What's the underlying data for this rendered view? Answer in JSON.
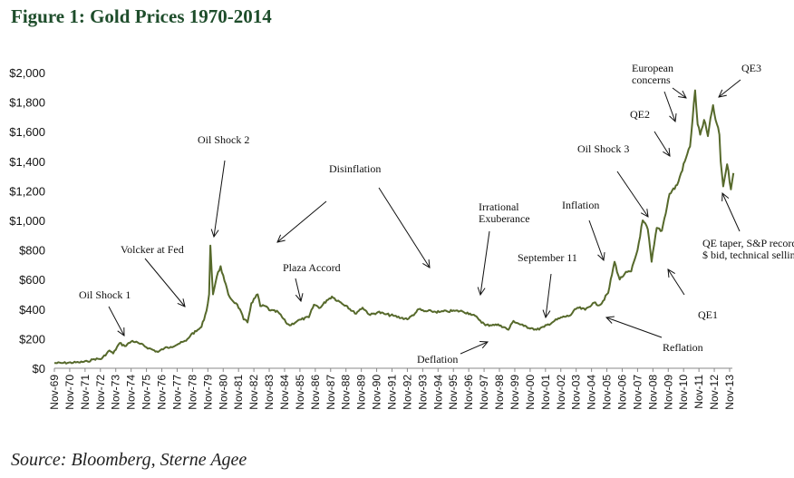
{
  "chart_data": {
    "type": "line",
    "title": "Figure 1: Gold Prices 1970-2014",
    "source": "Source: Bloomberg, Sterne Agee",
    "xlabel": "",
    "ylabel": "",
    "ylim": [
      0,
      2000
    ],
    "yticks": [
      "$0",
      "$200",
      "$400",
      "$600",
      "$800",
      "$1,000",
      "$1,200",
      "$1,400",
      "$1,600",
      "$1,800",
      "$2,000"
    ],
    "xticks": [
      "Nov-69",
      "Nov-70",
      "Nov-71",
      "Nov-72",
      "Nov-73",
      "Nov-74",
      "Nov-75",
      "Nov-76",
      "Nov-77",
      "Nov-78",
      "Nov-79",
      "Nov-80",
      "Nov-81",
      "Nov-82",
      "Nov-83",
      "Nov-84",
      "Nov-85",
      "Nov-86",
      "Nov-87",
      "Nov-88",
      "Nov-89",
      "Nov-90",
      "Nov-91",
      "Nov-92",
      "Nov-93",
      "Nov-94",
      "Nov-95",
      "Nov-96",
      "Nov-97",
      "Nov-98",
      "Nov-99",
      "Nov-00",
      "Nov-01",
      "Nov-02",
      "Nov-03",
      "Nov-04",
      "Nov-05",
      "Nov-06",
      "Nov-07",
      "Nov-08",
      "Nov-09",
      "Nov-10",
      "Nov-11",
      "Nov-12",
      "Nov-13"
    ],
    "grid": false,
    "line_color": "#56692b",
    "series": [
      {
        "x": [
          "1969-11",
          "1970-06",
          "1971-06",
          "1972-01",
          "1972-06",
          "1972-12",
          "1973-06",
          "1973-09",
          "1974-02",
          "1974-06",
          "1974-12",
          "1975-06",
          "1976-01",
          "1976-08",
          "1977-01",
          "1977-06",
          "1977-12",
          "1978-06",
          "1978-10",
          "1979-02",
          "1979-06",
          "1979-10",
          "1979-12",
          "1980-01",
          "1980-02",
          "1980-03",
          "1980-06",
          "1980-09",
          "1980-12",
          "1981-03",
          "1981-06",
          "1981-09",
          "1981-12",
          "1982-03",
          "1982-06",
          "1982-09",
          "1983-02",
          "1983-04",
          "1983-08",
          "1983-12",
          "1984-06",
          "1984-12",
          "1985-03",
          "1985-09",
          "1985-12",
          "1986-06",
          "1986-10",
          "1987-03",
          "1987-08",
          "1987-12",
          "1988-06",
          "1988-12",
          "1989-06",
          "1989-12",
          "1990-06",
          "1990-12",
          "1991-06",
          "1991-12",
          "1992-06",
          "1992-12",
          "1993-06",
          "1993-08",
          "1993-12",
          "1994-06",
          "1994-12",
          "1995-06",
          "1995-12",
          "1996-06",
          "1996-12",
          "1997-06",
          "1997-12",
          "1998-06",
          "1998-12",
          "1999-06",
          "1999-10",
          "2000-06",
          "2000-12",
          "2001-04",
          "2001-10",
          "2002-06",
          "2002-12",
          "2003-06",
          "2003-12",
          "2004-06",
          "2004-12",
          "2005-06",
          "2005-12",
          "2006-05",
          "2006-09",
          "2007-01",
          "2007-06",
          "2007-11",
          "2008-03",
          "2008-07",
          "2008-10",
          "2009-02",
          "2009-06",
          "2009-12",
          "2010-06",
          "2010-12",
          "2011-04",
          "2011-08",
          "2011-10",
          "2011-12",
          "2012-03",
          "2012-06",
          "2012-10",
          "2012-12",
          "2013-03",
          "2013-04",
          "2013-06",
          "2013-09",
          "2013-12",
          "2014-02"
        ],
        "y": [
          35,
          36,
          40,
          46,
          62,
          64,
          120,
          100,
          170,
          150,
          185,
          165,
          135,
          110,
          135,
          145,
          165,
          185,
          230,
          250,
          280,
          390,
          500,
          830,
          650,
          500,
          620,
          690,
          590,
          500,
          460,
          440,
          400,
          330,
          310,
          440,
          500,
          420,
          420,
          390,
          380,
          310,
          290,
          320,
          330,
          345,
          430,
          410,
          460,
          485,
          450,
          420,
          370,
          410,
          360,
          380,
          365,
          355,
          340,
          335,
          380,
          400,
          385,
          385,
          380,
          385,
          388,
          385,
          370,
          340,
          290,
          295,
          290,
          260,
          320,
          285,
          272,
          260,
          280,
          320,
          345,
          355,
          410,
          395,
          440,
          430,
          510,
          720,
          600,
          640,
          655,
          800,
          1000,
          940,
          720,
          950,
          930,
          1180,
          1240,
          1400,
          1500,
          1880,
          1650,
          1580,
          1680,
          1570,
          1780,
          1680,
          1580,
          1400,
          1230,
          1380,
          1210,
          1320
        ]
      }
    ],
    "annotations": [
      {
        "lines": [
          "Oil Shock 1"
        ]
      },
      {
        "lines": [
          "Volcker  at Fed"
        ]
      },
      {
        "lines": [
          "Oil Shock 2"
        ]
      },
      {
        "lines": [
          "Disinflation"
        ]
      },
      {
        "lines": [
          "Plaza Accord"
        ]
      },
      {
        "lines": [
          "Irrational",
          "Exuberance"
        ]
      },
      {
        "lines": [
          "Deflation"
        ]
      },
      {
        "lines": [
          "September 11"
        ]
      },
      {
        "lines": [
          "Inflation"
        ]
      },
      {
        "lines": [
          "Oil Shock 3"
        ]
      },
      {
        "lines": [
          "QE2"
        ]
      },
      {
        "lines": [
          "European",
          "concerns"
        ]
      },
      {
        "lines": [
          "QE3"
        ]
      },
      {
        "lines": [
          "QE taper, S&P record,",
          "$ bid, technical selling"
        ]
      },
      {
        "lines": [
          "QE1"
        ]
      },
      {
        "lines": [
          "Reflation"
        ]
      }
    ]
  }
}
